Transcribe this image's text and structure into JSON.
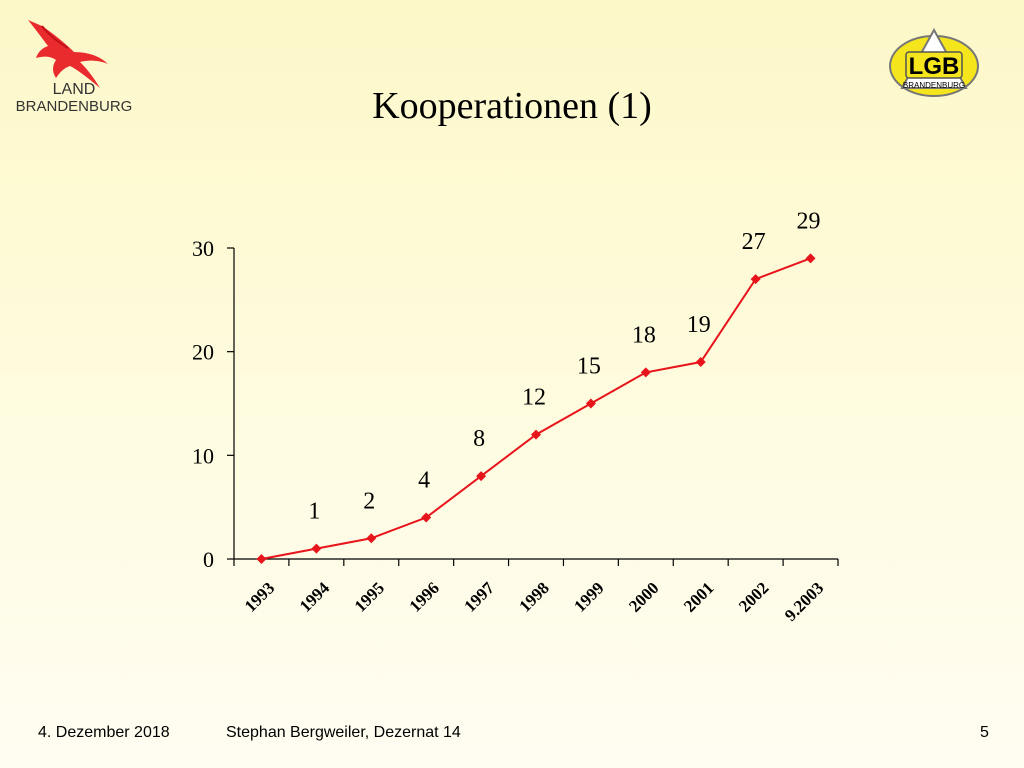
{
  "slide": {
    "title": "Kooperationen (1)"
  },
  "logos": {
    "left": {
      "line1": "LAND",
      "line2": "BRANDENBURG"
    },
    "right": {
      "main": "LGB",
      "sub": "BRANDENBURG"
    }
  },
  "chart_data": {
    "type": "line",
    "title": "",
    "xlabel": "",
    "ylabel": "",
    "categories": [
      "1993",
      "1994",
      "1995",
      "1996",
      "1997",
      "1998",
      "1999",
      "2000",
      "2001",
      "2002",
      "9.2003"
    ],
    "series": [
      {
        "values": [
          0,
          1,
          2,
          4,
          8,
          12,
          15,
          18,
          19,
          27,
          29
        ],
        "data_labels": [
          "",
          "1",
          "2",
          "4",
          "8",
          "12",
          "15",
          "18",
          "19",
          "27",
          "29"
        ],
        "color": "#e8141c",
        "marker": "diamond"
      }
    ],
    "ylim": [
      0,
      30
    ],
    "yticks": [
      0,
      10,
      20,
      30
    ],
    "grid": false,
    "legend": "none"
  },
  "footer": {
    "date": "4. Dezember 2018",
    "author": "Stephan Bergweiler, Dezernat 14",
    "page": "5"
  }
}
